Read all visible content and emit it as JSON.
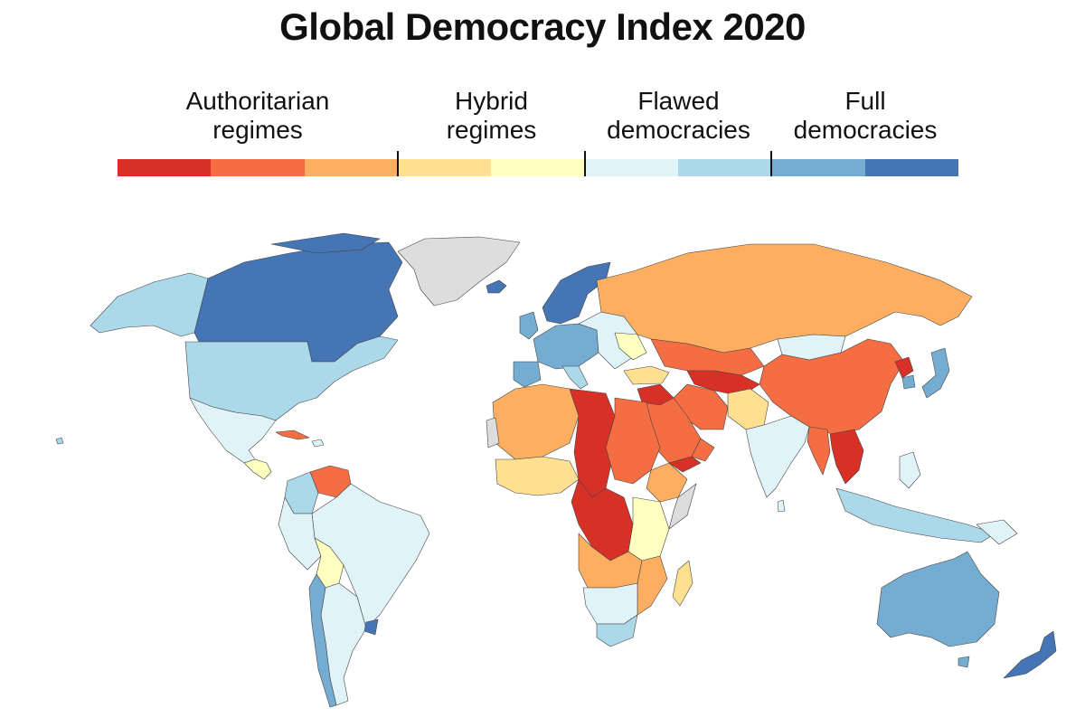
{
  "title": "Global Democracy Index 2020",
  "legend": {
    "categories": [
      {
        "label": "Authoritarian\nregimes",
        "colors": [
          "#d73027",
          "#f46d43",
          "#fdae61"
        ]
      },
      {
        "label": "Hybrid\nregimes",
        "colors": [
          "#fee090",
          "#ffffbf"
        ]
      },
      {
        "label": "Flawed\ndemocracies",
        "colors": [
          "#e0f3f8",
          "#abd9e9"
        ]
      },
      {
        "label": "Full\ndemocracies",
        "colors": [
          "#74add1",
          "#4575b4"
        ]
      }
    ]
  },
  "colors": {
    "no_data": "#dddddd",
    "border": "#444444"
  }
}
